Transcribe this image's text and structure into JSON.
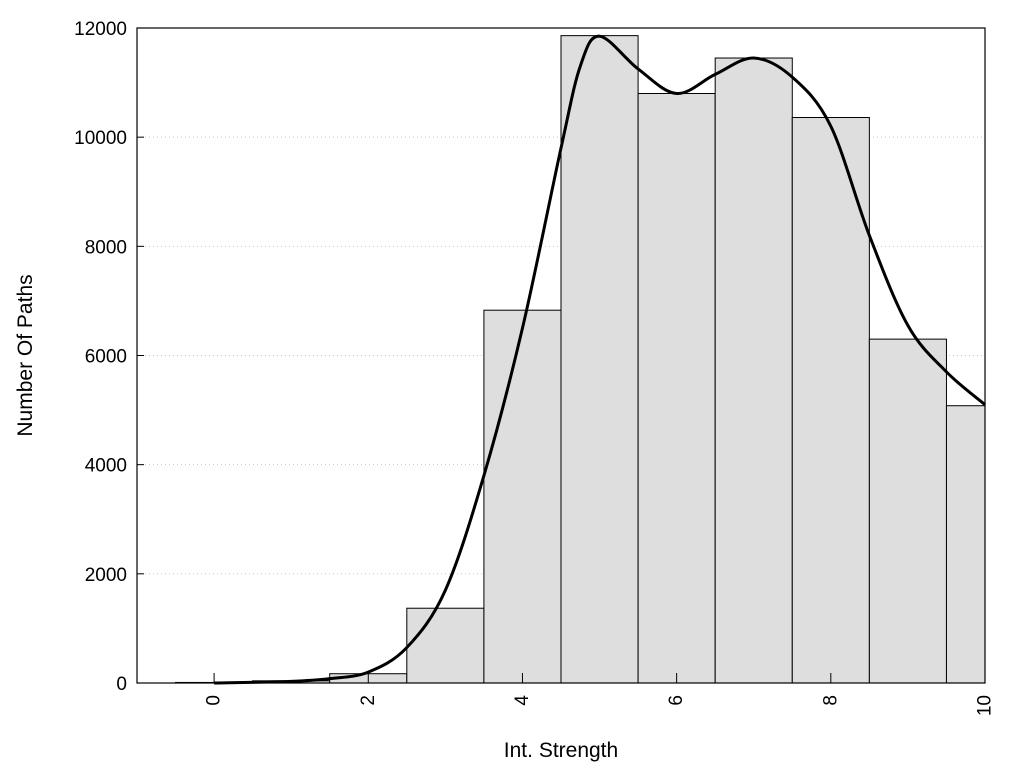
{
  "chart_data": {
    "type": "bar",
    "xlabel": "Int. Strength",
    "ylabel": "Number Of Paths",
    "xlim": [
      -1,
      10
    ],
    "ylim": [
      0,
      12000
    ],
    "x_ticks": [
      0,
      2,
      4,
      6,
      8,
      10
    ],
    "y_ticks": [
      0,
      2000,
      4000,
      6000,
      8000,
      10000,
      12000
    ],
    "grid": "horizontal-dotted",
    "bar_fill": "#dedede",
    "bar_stroke": "#000000",
    "bars": [
      {
        "x": 0,
        "value": 10
      },
      {
        "x": 1,
        "value": 40
      },
      {
        "x": 2,
        "value": 170
      },
      {
        "x": 3,
        "value": 1370
      },
      {
        "x": 4,
        "value": 6830
      },
      {
        "x": 5,
        "value": 11860
      },
      {
        "x": 6,
        "value": 10800
      },
      {
        "x": 7,
        "value": 11450
      },
      {
        "x": 8,
        "value": 10360
      },
      {
        "x": 9,
        "value": 6300
      },
      {
        "x": 10,
        "value": 5080
      }
    ],
    "curve_color": "#000000",
    "curve": [
      {
        "x": 0,
        "y": 0
      },
      {
        "x": 1,
        "y": 30
      },
      {
        "x": 1.5,
        "y": 80
      },
      {
        "x": 2,
        "y": 200
      },
      {
        "x": 2.5,
        "y": 650
      },
      {
        "x": 3,
        "y": 1700
      },
      {
        "x": 3.5,
        "y": 3800
      },
      {
        "x": 4,
        "y": 6500
      },
      {
        "x": 4.5,
        "y": 9800
      },
      {
        "x": 4.75,
        "y": 11300
      },
      {
        "x": 5,
        "y": 11850
      },
      {
        "x": 5.5,
        "y": 11250
      },
      {
        "x": 6,
        "y": 10800
      },
      {
        "x": 6.5,
        "y": 11150
      },
      {
        "x": 7,
        "y": 11450
      },
      {
        "x": 7.5,
        "y": 11100
      },
      {
        "x": 8,
        "y": 10200
      },
      {
        "x": 8.5,
        "y": 8200
      },
      {
        "x": 9,
        "y": 6550
      },
      {
        "x": 9.5,
        "y": 5700
      },
      {
        "x": 10,
        "y": 5100
      }
    ]
  }
}
